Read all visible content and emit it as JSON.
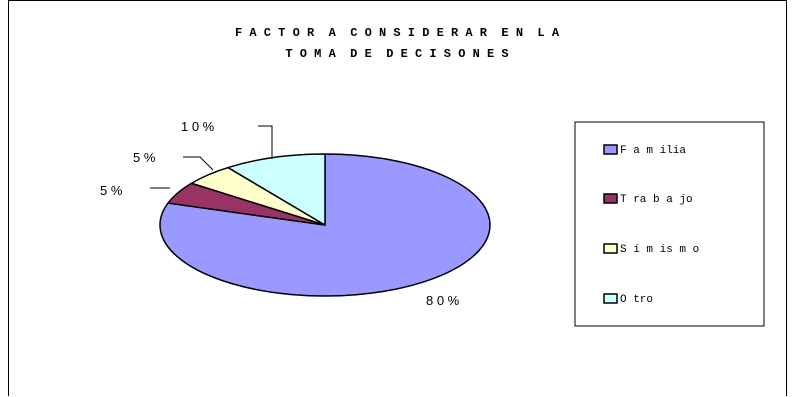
{
  "chart_data": {
    "type": "pie",
    "title_lines": [
      "F A C T O R  A  C O N S I D E R A R  E N  L A",
      "T O M A  D E  D E C I S O N E S"
    ],
    "categories": [
      "F a m ilia",
      "T ra b a jo",
      "S í m is m o",
      "O tro"
    ],
    "values": [
      80,
      5,
      5,
      10
    ],
    "value_labels": [
      "8 0 %",
      "5 %",
      "5 %",
      "1 0 %"
    ],
    "colors": [
      "#9999FF",
      "#993366",
      "#FFFFCC",
      "#CCFFFF"
    ],
    "legend_position": "right",
    "three_d": true
  }
}
